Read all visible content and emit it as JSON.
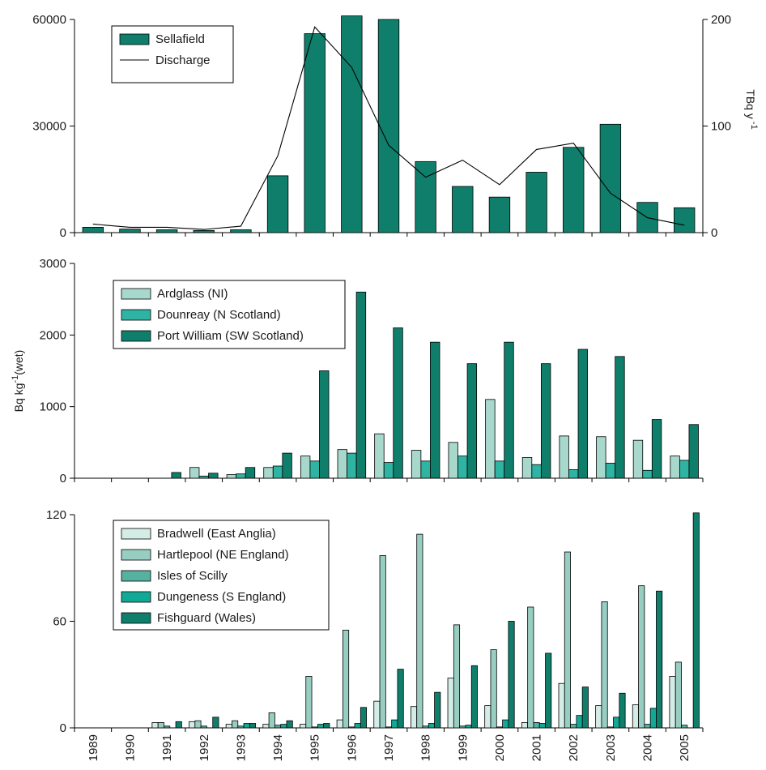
{
  "chart_data": [
    {
      "type": "bar",
      "categories": [
        "1989",
        "1990",
        "1991",
        "1992",
        "1993",
        "1994",
        "1995",
        "1996",
        "1997",
        "1998",
        "1999",
        "2000",
        "2001",
        "2002",
        "2003",
        "2004",
        "2005"
      ],
      "series": [
        {
          "name": "Sellafield",
          "color": "#0f7f6c",
          "values": [
            1500,
            1000,
            800,
            600,
            800,
            16000,
            56000,
            61000,
            60000,
            20000,
            13000,
            10000,
            17000,
            24000,
            30500,
            8500,
            7000
          ]
        }
      ],
      "line_series": {
        "name": "Discharge",
        "axis": "right",
        "color": "#000000",
        "values": [
          8,
          5,
          5,
          3,
          6,
          72,
          193,
          155,
          82,
          52,
          68,
          45,
          78,
          84,
          37,
          14,
          7
        ]
      },
      "ylim": [
        0,
        60000
      ],
      "yticks": [
        "0",
        "30000",
        "60000"
      ],
      "y2lim": [
        0,
        200
      ],
      "y2ticks": [
        "0",
        "100",
        "200"
      ],
      "y2label": "TBq y",
      "y2label_sup": "-1",
      "legend_position": "top-left"
    },
    {
      "type": "bar",
      "categories": [
        "1989",
        "1990",
        "1991",
        "1992",
        "1993",
        "1994",
        "1995",
        "1996",
        "1997",
        "1998",
        "1999",
        "2000",
        "2001",
        "2002",
        "2003",
        "2004",
        "2005"
      ],
      "series": [
        {
          "name": "Ardglass (NI)",
          "color": "#a8d8cc",
          "values": [
            null,
            null,
            null,
            150,
            50,
            150,
            310,
            400,
            620,
            390,
            500,
            1100,
            290,
            590,
            580,
            530,
            310
          ]
        },
        {
          "name": "Dounreay (N Scotland)",
          "color": "#2fb3a2",
          "values": [
            null,
            null,
            null,
            30,
            60,
            170,
            240,
            350,
            220,
            240,
            310,
            240,
            190,
            120,
            210,
            110,
            250
          ]
        },
        {
          "name": "Port William (SW Scotland)",
          "color": "#0f7f6c",
          "values": [
            null,
            null,
            80,
            70,
            150,
            350,
            1500,
            2600,
            2100,
            1900,
            1600,
            1900,
            1600,
            1800,
            1700,
            820,
            750
          ]
        }
      ],
      "ylim": [
        0,
        3000
      ],
      "yticks": [
        "0",
        "1000",
        "2000",
        "3000"
      ],
      "ylabel": "Bq kg",
      "ylabel_sup": "-1",
      "ylabel_suffix": "(wet)",
      "legend_position": "top-left"
    },
    {
      "type": "bar",
      "categories": [
        "1989",
        "1990",
        "1991",
        "1992",
        "1993",
        "1994",
        "1995",
        "1996",
        "1997",
        "1998",
        "1999",
        "2000",
        "2001",
        "2002",
        "2003",
        "2004",
        "2005"
      ],
      "series": [
        {
          "name": "Bradwell (East Anglia)",
          "color": "#d3ece5",
          "values": [
            null,
            null,
            3,
            3.5,
            2,
            2,
            2,
            4.5,
            15,
            12,
            28,
            12.5,
            3,
            25,
            12.5,
            13,
            29
          ]
        },
        {
          "name": "Hartlepool (NE England)",
          "color": "#98cec1",
          "values": [
            null,
            null,
            3,
            4,
            4,
            8.5,
            29,
            55,
            97,
            109,
            58,
            44,
            68,
            99,
            71,
            80,
            37
          ]
        },
        {
          "name": "Isles of Scilly",
          "color": "#56b1a0",
          "values": [
            null,
            null,
            1,
            1,
            1,
            1.5,
            0.5,
            0.5,
            0.5,
            1,
            1,
            0.5,
            3,
            2,
            0.5,
            2,
            1.5
          ]
        },
        {
          "name": "Dungeness (S England)",
          "color": "#11a996",
          "values": [
            null,
            null,
            null,
            null,
            2.5,
            2,
            2,
            2.5,
            4.5,
            2.5,
            1.5,
            4.5,
            2.5,
            7,
            6,
            11,
            null
          ]
        },
        {
          "name": "Fishguard (Wales)",
          "color": "#0f7f6c",
          "values": [
            null,
            null,
            3.5,
            6,
            2.5,
            4,
            2.5,
            11.5,
            33,
            20,
            35,
            60,
            42,
            23,
            19.5,
            77,
            121
          ]
        }
      ],
      "ylim": [
        0,
        120
      ],
      "yticks": [
        "0",
        "60",
        "120"
      ],
      "legend_position": "top-left"
    }
  ]
}
